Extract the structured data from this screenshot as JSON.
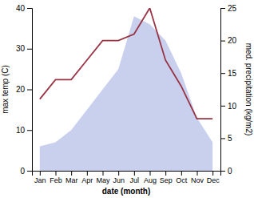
{
  "chart_data": {
    "type": "area",
    "categories": [
      "Jan",
      "Feb",
      "Mar",
      "Apr",
      "May",
      "Jun",
      "Jul",
      "Aug",
      "Sep",
      "Oct",
      "Nov",
      "Dec"
    ],
    "series": [
      {
        "type": "area",
        "color": "#c8d0ee",
        "values": [
          6,
          7,
          10,
          15,
          20,
          25,
          38,
          36,
          32,
          24,
          13,
          7
        ]
      },
      {
        "type": "line",
        "color": "#993344",
        "axis": "y2",
        "values": [
          11,
          14,
          14,
          17,
          20,
          20,
          21,
          25,
          17,
          13,
          8,
          8
        ]
      }
    ],
    "xlabel": "date (month)",
    "ylabel": "max temp (C)",
    "y2label": "med. precipitation (kg/m2)",
    "ylim": [
      0,
      40
    ],
    "yticks": [
      0,
      10,
      20,
      30,
      40
    ],
    "y2lim": [
      0,
      25
    ],
    "y2ticks": [
      0,
      5,
      10,
      15,
      20,
      25
    ],
    "grid": false
  }
}
